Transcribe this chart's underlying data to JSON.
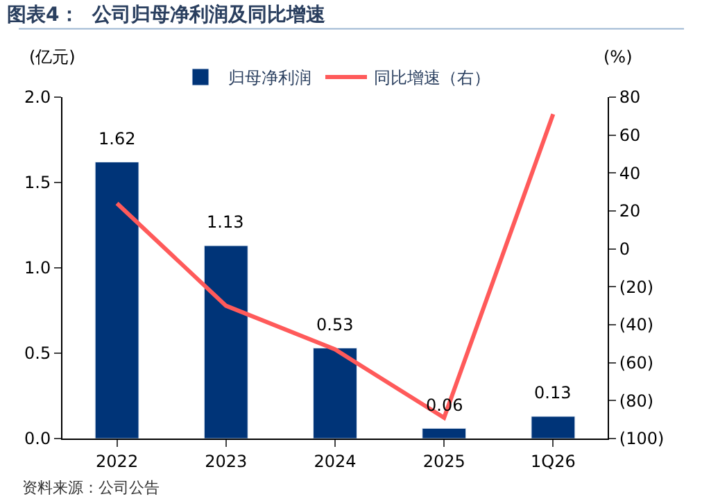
{
  "chart_data": {
    "type": "bar",
    "title": "图表4：  公司归母净利润及同比增速",
    "categories": [
      "2022",
      "2023",
      "2024",
      "2025",
      "1Q26"
    ],
    "series": [
      {
        "name": "归母净利润",
        "color": "#003478",
        "values": [
          1.62,
          1.13,
          0.53,
          0.06,
          0.13
        ],
        "data_labels": true
      },
      {
        "name": "同比增速（右）",
        "type": "line",
        "axis": "y2",
        "color": "#ff5a5a",
        "values": [
          24,
          -30,
          -53,
          -89,
          71
        ]
      }
    ],
    "ylabel": "(亿元)",
    "y2label": "(%)",
    "ylim": [
      0,
      2.0
    ],
    "yticks": [
      {
        "value": 0,
        "label": "0.0"
      },
      0.5,
      {
        "value": 1,
        "label": "1.0"
      },
      1.5,
      {
        "value": 2,
        "label": "2.0"
      }
    ],
    "y2lim": [
      -100,
      80
    ],
    "y2ticks": [
      {
        "value": -100,
        "label": "(100)"
      },
      {
        "value": -80,
        "label": "(80)"
      },
      {
        "value": -60,
        "label": "(60)"
      },
      {
        "value": -40,
        "label": "(40)"
      },
      {
        "value": -20,
        "label": "(20)"
      },
      0,
      20,
      40,
      60,
      80
    ],
    "legend": "top",
    "marker": "none",
    "line_style": "solid",
    "annotations": [
      "资料来源：公司公告"
    ]
  }
}
